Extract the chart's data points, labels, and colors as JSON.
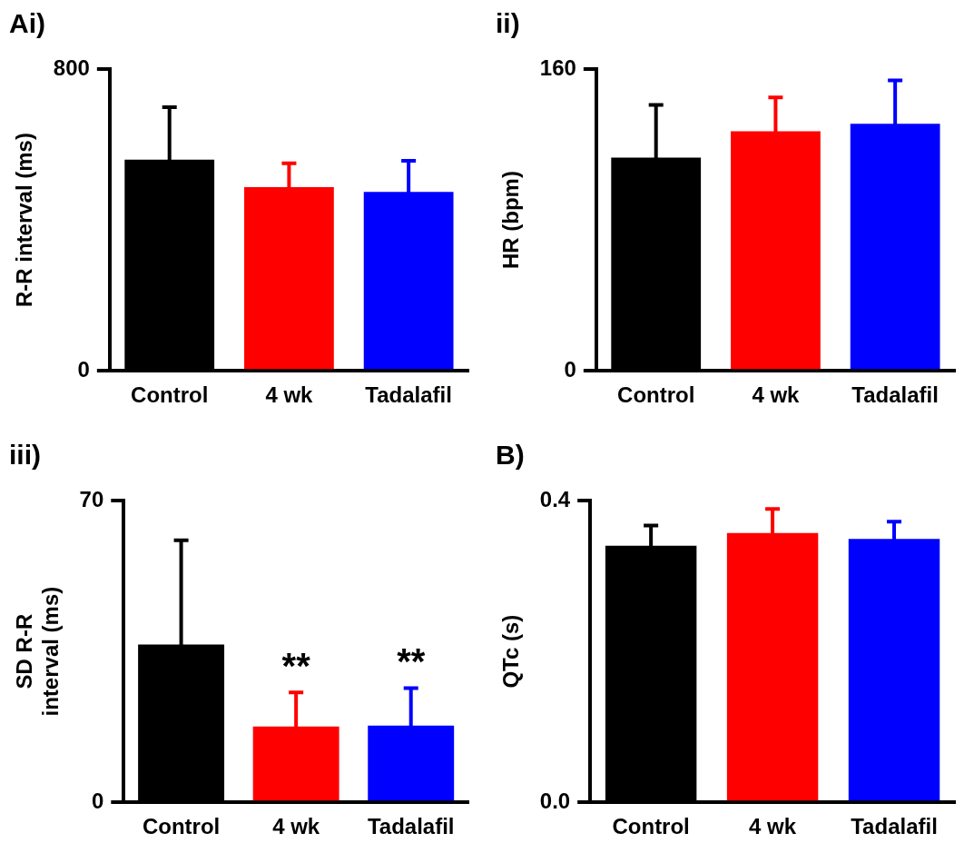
{
  "chart_data": [
    {
      "type": "bar",
      "title": "Ai)",
      "ylabel": "R-R interval (ms)",
      "categories": [
        "Control",
        "4 wk",
        "Tadalafil"
      ],
      "values": [
        560,
        487,
        474
      ],
      "colors": [
        "#000000",
        "#ff0000",
        "#0000ff"
      ],
      "errors": [
        139,
        63,
        83
      ],
      "ylim": [
        0,
        800
      ],
      "yticks": [
        0,
        800
      ],
      "grid": false,
      "legend": false
    },
    {
      "type": "bar",
      "title": "ii)",
      "ylabel": "HR (bpm)",
      "categories": [
        "Control",
        "4 wk",
        "Tadalafil"
      ],
      "values": [
        113,
        127,
        131
      ],
      "colors": [
        "#000000",
        "#ff0000",
        "#0000ff"
      ],
      "errors": [
        28,
        18,
        23
      ],
      "ylim": [
        0,
        160
      ],
      "yticks": [
        0,
        160
      ],
      "grid": false,
      "legend": false
    },
    {
      "type": "bar",
      "title": "iii)",
      "ylabel": "SD R-R interval (ms)",
      "categories": [
        "Control",
        "4 wk",
        "Tadalafil"
      ],
      "values": [
        36.6,
        17.6,
        17.8
      ],
      "colors": [
        "#000000",
        "#ff0000",
        "#0000ff"
      ],
      "errors": [
        24.2,
        7.9,
        8.7
      ],
      "ylim": [
        0,
        70
      ],
      "yticks": [
        0,
        70
      ],
      "grid": false,
      "legend": false,
      "annotations": [
        {
          "text": "**",
          "x": "4 wk",
          "y": 25.5
        },
        {
          "text": "**",
          "x": "Tadalafil",
          "y": 26.5
        }
      ]
    },
    {
      "type": "bar",
      "title": "B)",
      "ylabel": "QTc (s)",
      "categories": [
        "Control",
        "4 wk",
        "Tadalafil"
      ],
      "values": [
        0.34,
        0.357,
        0.349
      ],
      "colors": [
        "#000000",
        "#ff0000",
        "#0000ff"
      ],
      "errors": [
        0.027,
        0.032,
        0.023
      ],
      "ylim": [
        0,
        0.4
      ],
      "yticks": [
        {
          "value": 0,
          "label": "0.0"
        },
        0.4
      ],
      "grid": false,
      "legend": false
    }
  ]
}
